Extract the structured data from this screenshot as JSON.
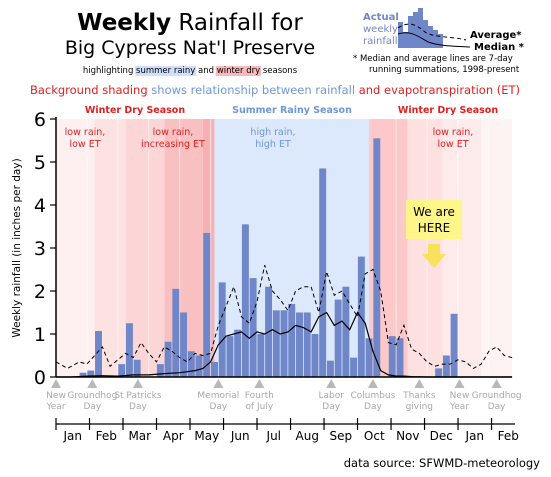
{
  "title": {
    "bold": "Weekly",
    "rest": " Rainfall for",
    "line2": "Big Cypress Nat'l Preserve",
    "line3_pre": "highlighting ",
    "line3_summer": "summer rainy",
    "line3_mid": " and ",
    "line3_winter": "winter dry",
    "line3_post": " seasons"
  },
  "inset": {
    "actual_line1": "Actual",
    "actual_line2": "weekly",
    "actual_line3": "rainfall",
    "average": "Average*",
    "median": "Median *",
    "note_line1": "* Median and average lines are 7-day",
    "note_line2": "running summations, 1998-present"
  },
  "subtitle": {
    "pre": "Background shading ",
    "mid": "shows relationship between rainfall",
    "post": " and evapotranspiration (ET)"
  },
  "seasons": {
    "winter_left": "Winter Dry Season",
    "summer": "Summer Rainy  Season",
    "winter_right": "Winter Dry Season"
  },
  "annotations": {
    "a1_l1": "low rain,",
    "a1_l2": "low ET",
    "a2_l1": "low rain,",
    "a2_l2": "increasing ET",
    "a3_l1": "high rain,",
    "a3_l2": "high ET",
    "a4_l1": "low rain,",
    "a4_l2": "low ET",
    "callout_l1": "We are",
    "callout_l2": "HERE"
  },
  "source": "data source: SFWMD-meteorology",
  "colors": {
    "bar": "#6f86c9",
    "summer_shade": "#dce8fb",
    "winter_light": "#fdeaea",
    "winter_strong": "#f7b6b8",
    "season_red": "#e02020",
    "season_blue": "#6f96d8",
    "holiday": "#b8b8b8",
    "callout_fill": "#fff68a",
    "callout_arrow": "#f8e25c"
  },
  "chart_data": {
    "type": "bar",
    "ylabel": "Weekly rainfall (in inches per day)",
    "ylim": [
      0,
      6
    ],
    "yticks": [
      0,
      1,
      2,
      3,
      4,
      5,
      6
    ],
    "months": [
      "Jan",
      "Feb",
      "Mar",
      "Apr",
      "May",
      "Jun",
      "Jul",
      "Aug",
      "Sep",
      "Oct",
      "Nov",
      "Dec",
      "Jan",
      "Feb"
    ],
    "holidays": [
      {
        "l1": "New",
        "l2": "Year",
        "week": 0
      },
      {
        "l1": "Groundhog",
        "l2": "Day",
        "week": 4.7
      },
      {
        "l1": "St Patricks",
        "l2": "Day",
        "week": 10.6
      },
      {
        "l1": "Memorial",
        "l2": "Day",
        "week": 21
      },
      {
        "l1": "Fourth",
        "l2": "of July",
        "week": 26.3
      },
      {
        "l1": "Labor",
        "l2": "Day",
        "week": 35.6
      },
      {
        "l1": "Columbus",
        "l2": "Day",
        "week": 41
      },
      {
        "l1": "Thanks",
        "l2": "giving",
        "week": 47
      },
      {
        "l1": "New",
        "l2": "Year",
        "week": 52.2
      },
      {
        "l1": "Groundhog",
        "l2": "Day",
        "week": 57
      }
    ],
    "series": [
      {
        "name": "Actual weekly rainfall",
        "type": "bar",
        "values": [
          0,
          0,
          0,
          0.1,
          0.15,
          1.07,
          0,
          0,
          0.3,
          1.25,
          0.4,
          0,
          0,
          0.3,
          0.82,
          2.05,
          1.5,
          0.6,
          0.5,
          3.35,
          0.35,
          2.2,
          0.95,
          1.1,
          3.55,
          2.3,
          1.0,
          2.1,
          1.55,
          1.55,
          1.7,
          1.5,
          1.5,
          1.0,
          4.85,
          0.38,
          1.8,
          2.1,
          0.45,
          2.8,
          0.9,
          5.55,
          0,
          0.95,
          0.9,
          0,
          0,
          0,
          0,
          0.2,
          0.5,
          1.47
        ]
      },
      {
        "name": "Average",
        "type": "line",
        "x": [
          0,
          1.5,
          3,
          4,
          5,
          6,
          7,
          8,
          9,
          10,
          11,
          12,
          13,
          14,
          15,
          16,
          17,
          18,
          19,
          20,
          21,
          22,
          23,
          24,
          25,
          26,
          27,
          28,
          29,
          30,
          31,
          32,
          33,
          34,
          35,
          36,
          37,
          38,
          39,
          40,
          41,
          42,
          43,
          44,
          45,
          46,
          47,
          48,
          49,
          50,
          51,
          52,
          53,
          54,
          55,
          56,
          57,
          58,
          59
        ],
        "values": [
          0.35,
          0.2,
          0.35,
          0.3,
          0.5,
          0.7,
          0.25,
          0.4,
          0.55,
          0.45,
          0.8,
          0.55,
          0.35,
          0.7,
          0.6,
          0.45,
          0.35,
          0.55,
          0.5,
          0.55,
          1.2,
          1.65,
          2.1,
          1.4,
          1.25,
          1.75,
          2.6,
          2.0,
          1.8,
          1.55,
          2.0,
          2.1,
          2.1,
          1.5,
          2.45,
          1.9,
          2.0,
          1.7,
          1.4,
          2.4,
          2.5,
          2.0,
          0.8,
          0.75,
          1.2,
          0.65,
          0.55,
          0.35,
          0.25,
          0.3,
          0.3,
          0.4,
          0.35,
          0.2,
          0.3,
          0.6,
          0.7,
          0.5,
          0.45
        ]
      },
      {
        "name": "Median",
        "type": "line",
        "x": [
          0,
          2,
          4,
          6,
          8,
          10,
          12,
          14,
          16,
          18,
          19,
          20,
          21,
          22,
          23,
          24,
          25,
          26,
          27,
          28,
          29,
          30,
          31,
          32,
          33,
          34,
          35,
          36,
          37,
          38,
          39,
          40,
          41,
          42,
          43,
          44,
          45,
          46,
          48,
          50,
          52,
          54,
          56,
          58,
          59
        ],
        "values": [
          0,
          0,
          0.02,
          0.03,
          0.02,
          0.05,
          0.05,
          0.08,
          0.1,
          0.15,
          0.2,
          0.35,
          0.75,
          0.95,
          1.0,
          1.05,
          0.9,
          1.05,
          1.0,
          1.1,
          1.0,
          1.05,
          1.2,
          1.15,
          1.05,
          1.4,
          1.5,
          1.2,
          1.3,
          1.1,
          1.5,
          1.25,
          0.6,
          0.15,
          0.05,
          0.02,
          0.02,
          0.01,
          0,
          0,
          0,
          0,
          0,
          0,
          0
        ]
      }
    ]
  }
}
